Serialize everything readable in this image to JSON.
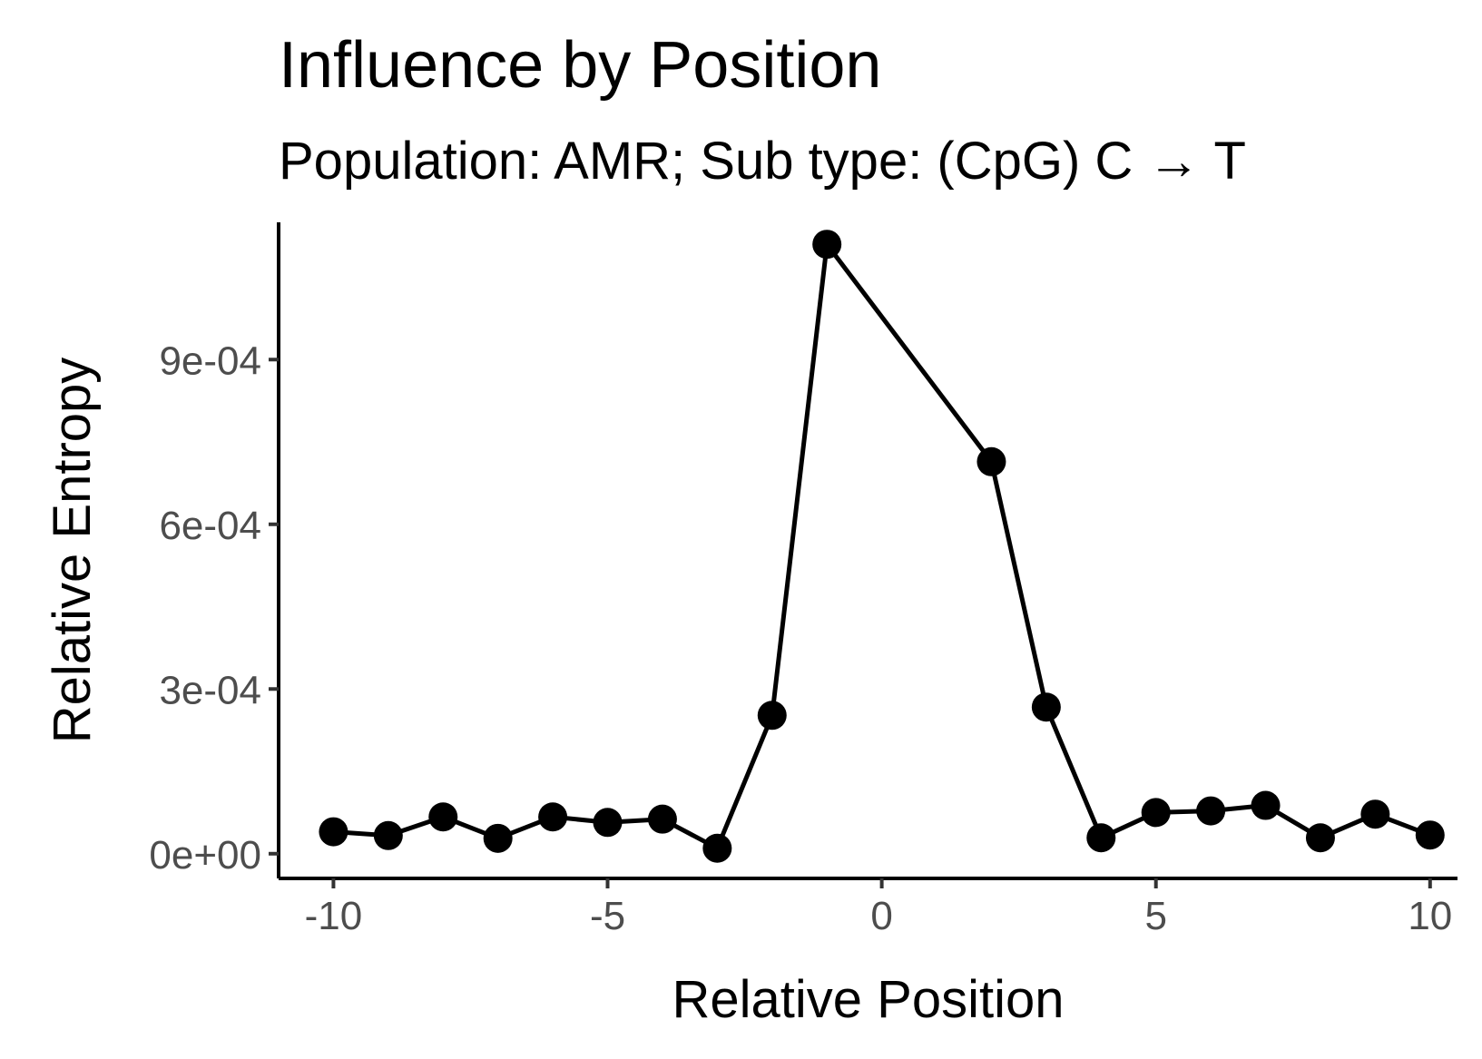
{
  "chart_data": {
    "type": "line",
    "title": "Influence by Position",
    "subtitle": "Population: AMR; Sub type: (CpG) C → T",
    "xlabel": "Relative Position",
    "ylabel": "Relative Entropy",
    "xlim": [
      -11,
      10.5
    ],
    "ylim": [
      -4.5e-05,
      0.00115
    ],
    "x_ticks": [
      -10,
      -5,
      0,
      5,
      10
    ],
    "x_tick_labels": [
      "-10",
      "-5",
      "0",
      "5",
      "10"
    ],
    "y_ticks": [
      0,
      0.0003,
      0.0006,
      0.0009
    ],
    "y_tick_labels": [
      "0e+00",
      "3e-04",
      "6e-04",
      "9e-04"
    ],
    "grid": false,
    "legend": "none",
    "series": [
      {
        "color": "#000000",
        "x": [
          -10,
          -9,
          -8,
          -7,
          -6,
          -5,
          -4,
          -3,
          -2,
          -1,
          2,
          3,
          4,
          5,
          6,
          7,
          8,
          9,
          10
        ],
        "y": [
          4e-05,
          3.3e-05,
          6.7e-05,
          2.8e-05,
          6.7e-05,
          5.7e-05,
          6.3e-05,
          1e-05,
          0.000252,
          0.00111,
          0.000714,
          0.000267,
          2.9e-05,
          7.5e-05,
          7.8e-05,
          8.8e-05,
          2.9e-05,
          7.2e-05,
          3.4e-05
        ]
      }
    ]
  }
}
